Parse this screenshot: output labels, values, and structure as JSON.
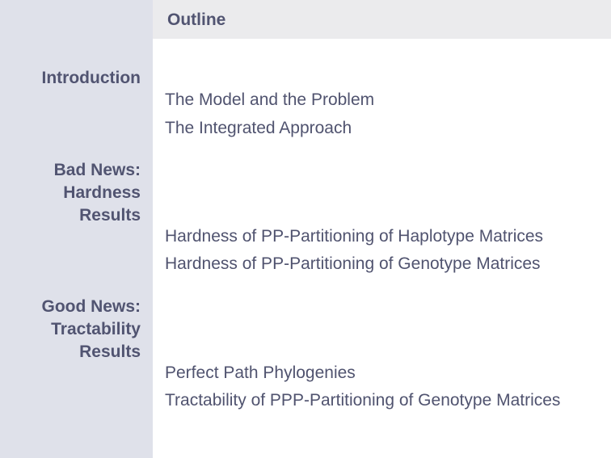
{
  "slide": {
    "title": "Outline"
  },
  "sections": [
    {
      "heading_lines": [
        "Introduction"
      ],
      "items": [
        "The Model and the Problem",
        "The Integrated Approach"
      ]
    },
    {
      "heading_lines": [
        "Bad News:",
        "Hardness",
        "Results"
      ],
      "items": [
        "Hardness of PP-Partitioning of Haplotype Matrices",
        "Hardness of PP-Partitioning of Genotype Matrices"
      ]
    },
    {
      "heading_lines": [
        "Good News:",
        "Tractability",
        "Results"
      ],
      "items": [
        "Perfect Path Phylogenies",
        "Tractability of PPP-Partitioning of Genotype Matrices"
      ]
    }
  ]
}
